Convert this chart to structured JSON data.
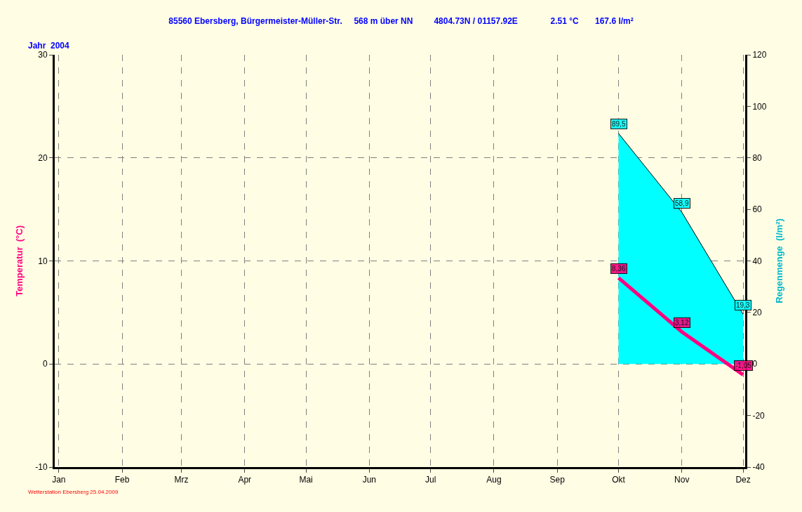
{
  "chart_data": {
    "type": "line",
    "title": "85560 Ebersberg, Bürgermeister-Müller-Str.     568 m über NN         4804.73N / 01157.92E              2.51 °C       167.6 l/m²",
    "subtitle": "Jahr  2004",
    "ylabel": "Temperatur  (°C)",
    "y2label": "Regenmenge  (l/m²)",
    "x": [
      "2004-10-01",
      "2004-11-01",
      "2004-12-01"
    ],
    "series": [
      {
        "type": "area",
        "axis": "y2",
        "color": "#00ffff",
        "values": [
          89.5,
          58.9,
          19.3
        ],
        "value_labels": [
          "89,5",
          "58,9",
          "19,3"
        ]
      },
      {
        "color": "#ff0080",
        "values": [
          8.36,
          3.12,
          -1.05
        ],
        "value_labels": [
          "8,36",
          "3,12",
          "-1,05"
        ]
      }
    ],
    "xlim": [
      "2003-12-30",
      "2004-12-02"
    ],
    "xticks": [
      {
        "value": "2004-01-01",
        "label": "Jan"
      },
      {
        "value": "2004-02-01",
        "label": "Feb"
      },
      {
        "value": "2004-03-01",
        "label": "Mrz"
      },
      {
        "value": "2004-04-01",
        "label": "Apr"
      },
      {
        "value": "2004-05-01",
        "label": "Mai"
      },
      {
        "value": "2004-06-01",
        "label": "Jun"
      },
      {
        "value": "2004-07-01",
        "label": "Jul"
      },
      {
        "value": "2004-08-01",
        "label": "Aug"
      },
      {
        "value": "2004-09-01",
        "label": "Sep"
      },
      {
        "value": "2004-10-01",
        "label": "Okt"
      },
      {
        "value": "2004-11-01",
        "label": "Nov"
      },
      {
        "value": "2004-12-01",
        "label": "Dez"
      }
    ],
    "ylim": [
      -10,
      30
    ],
    "yticks": [
      -10,
      0,
      10,
      20,
      30
    ],
    "y2lim": [
      -40,
      120
    ],
    "y2ticks": [
      -40,
      -20,
      0,
      20,
      40,
      60,
      80,
      100,
      120
    ],
    "grid": true,
    "marker": "none",
    "annotations": [
      "Wetterstation Ebersberg 25.04.2009"
    ]
  }
}
